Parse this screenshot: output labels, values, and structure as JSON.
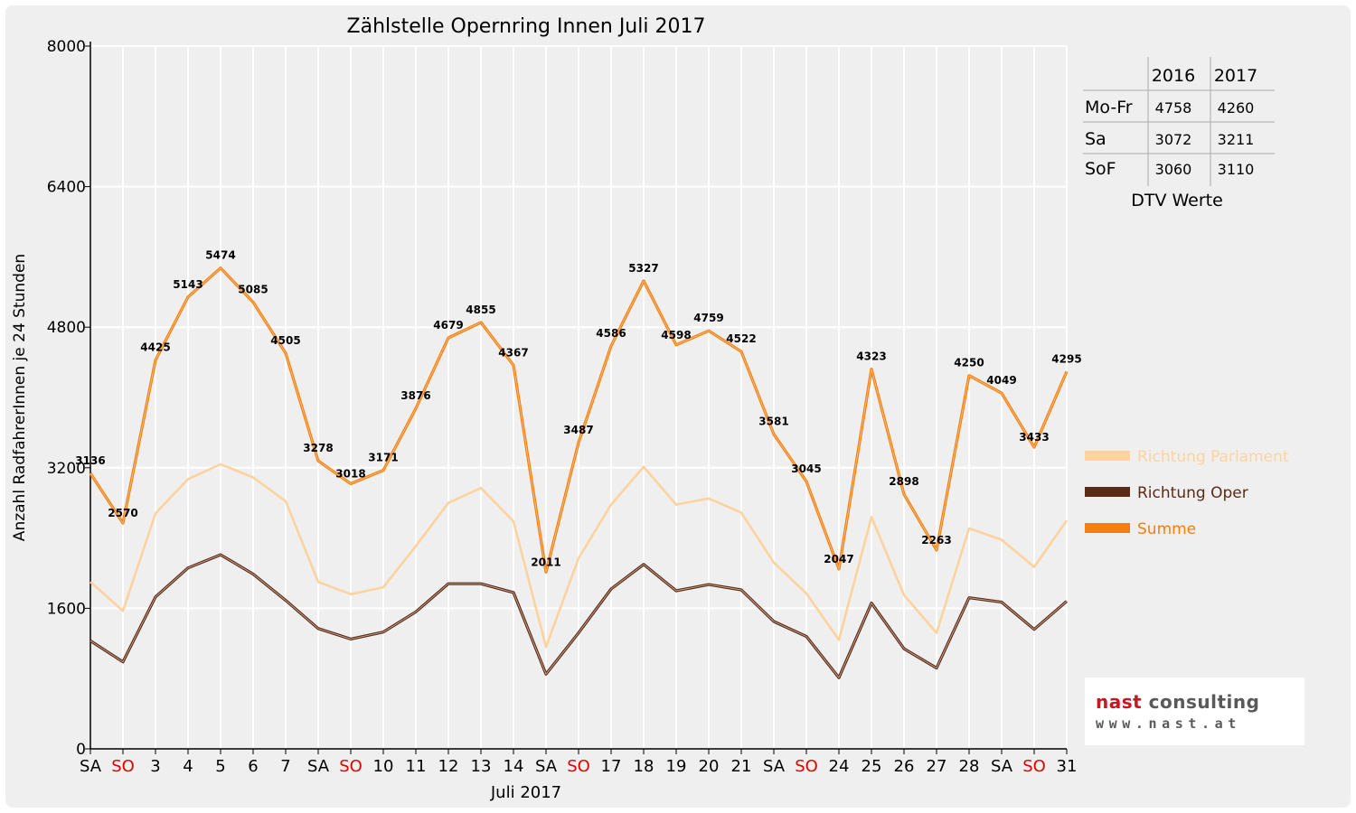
{
  "chart_data": {
    "type": "line",
    "title": "Zählstelle Opernring Innen Juli 2017",
    "xlabel": "Juli 2017",
    "ylabel": "Anzahl RadfahrerInnen je 24 Stunden",
    "ylim": [
      0,
      8000
    ],
    "yticks": [
      "0",
      "1600",
      "3200",
      "4800",
      "6400",
      "8000"
    ],
    "grid": true,
    "legend_position": "right",
    "categories": [
      "SA",
      "SO",
      "3",
      "4",
      "5",
      "6",
      "7",
      "SA",
      "SO",
      "10",
      "11",
      "12",
      "13",
      "14",
      "SA",
      "SO",
      "17",
      "18",
      "19",
      "20",
      "21",
      "SA",
      "SO",
      "24",
      "25",
      "26",
      "27",
      "28",
      "SA",
      "SO",
      "31"
    ],
    "weekend_flags": [
      false,
      true,
      false,
      false,
      false,
      false,
      false,
      false,
      true,
      false,
      false,
      false,
      false,
      false,
      false,
      true,
      false,
      false,
      false,
      false,
      false,
      false,
      true,
      false,
      false,
      false,
      false,
      false,
      false,
      true,
      false
    ],
    "series": [
      {
        "name": "Richtung Parlament",
        "color": "#fcd39f",
        "values": [
          1900,
          1570,
          2680,
          3070,
          3240,
          3090,
          2820,
          1900,
          1760,
          1840,
          2310,
          2800,
          2970,
          2590,
          1160,
          2170,
          2780,
          3210,
          2780,
          2850,
          2690,
          2120,
          1770,
          1240,
          2640,
          1750,
          1320,
          2510,
          2380,
          2070,
          2600
        ]
      },
      {
        "name": "Richtung Oper",
        "color": "#5a2c17",
        "values": [
          1230,
          990,
          1730,
          2060,
          2210,
          1990,
          1690,
          1370,
          1250,
          1330,
          1560,
          1880,
          1880,
          1780,
          850,
          1320,
          1820,
          2100,
          1800,
          1870,
          1810,
          1450,
          1280,
          810,
          1660,
          1140,
          920,
          1720,
          1670,
          1360,
          1680
        ]
      },
      {
        "name": "Summe",
        "color": "#f57e0e",
        "values": [
          3136,
          2570,
          4425,
          5143,
          5474,
          5085,
          4505,
          3278,
          3018,
          3171,
          3876,
          4679,
          4855,
          4367,
          2011,
          3487,
          4586,
          5327,
          4598,
          4759,
          4522,
          3581,
          3045,
          2047,
          4323,
          2898,
          2263,
          4250,
          4049,
          3433,
          4295
        ],
        "labels": [
          "3136",
          "2570",
          "4425",
          "5143",
          "5474",
          "5085",
          "4505",
          "3278",
          "3018",
          "3171",
          "3876",
          "4679",
          "4855",
          "4367",
          "2011",
          "3487",
          "4586",
          "5327",
          "4598",
          "4759",
          "4522",
          "3581",
          "3045",
          "2047",
          "4323",
          "2898",
          "2263",
          "4250",
          "4049",
          "3433",
          "4295"
        ]
      }
    ],
    "colors": {
      "axis": "#000000",
      "grid": "#ffffff",
      "weekend_label": "#e00000",
      "background": "#efefef"
    }
  },
  "dtv_table": {
    "headers": [
      "",
      "2016",
      "2017"
    ],
    "rows": [
      {
        "label": "Mo-Fr",
        "v2016": "4758",
        "v2017": "4260"
      },
      {
        "label": "Sa",
        "v2016": "3072",
        "v2017": "3211"
      },
      {
        "label": "SoF",
        "v2016": "3060",
        "v2017": "3110"
      }
    ],
    "caption": "DTV Werte"
  },
  "logo": {
    "brand_red": "nast",
    "brand_gray": " consulting",
    "url": "www.nast.at"
  }
}
